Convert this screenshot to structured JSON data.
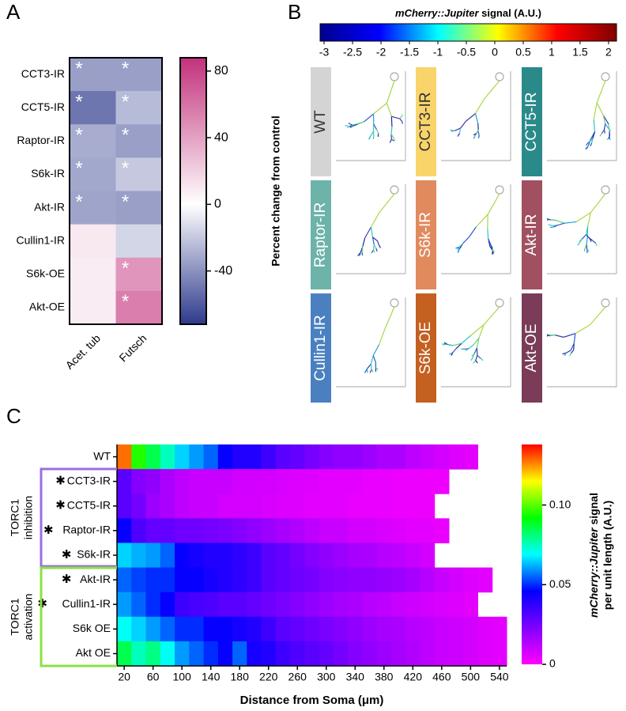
{
  "chart_data": [
    {
      "type": "heatmap",
      "panel_label": "A",
      "rows": [
        "CCT3-IR",
        "CCT5-IR",
        "Raptor-IR",
        "S6k-IR",
        "Akt-IR",
        "Cullin1-IR",
        "S6k-OE",
        "Akt-OE"
      ],
      "columns": [
        "Acet. tub",
        "Futsch"
      ],
      "values": [
        [
          -35,
          -35
        ],
        [
          -50,
          -25
        ],
        [
          -30,
          -35
        ],
        [
          -32,
          -20
        ],
        [
          -33,
          -35
        ],
        [
          10,
          -15
        ],
        [
          8,
          45
        ],
        [
          8,
          55
        ]
      ],
      "significant": [
        [
          true,
          true
        ],
        [
          true,
          true
        ],
        [
          true,
          true
        ],
        [
          true,
          true
        ],
        [
          true,
          true
        ],
        [
          false,
          false
        ],
        [
          false,
          true
        ],
        [
          false,
          true
        ]
      ],
      "marker": "*",
      "zlim": [
        -72,
        88
      ],
      "zticks": [
        80,
        40,
        0,
        -40
      ],
      "colorbar_label": "Percent change from control",
      "colors": [
        "#2e3a8c",
        "#ffffff",
        "#c2317b"
      ]
    },
    {
      "type": "heatmap",
      "panel_label": "C",
      "rows": [
        "WT",
        "CCT3-IR",
        "CCT5-IR",
        "Raptor-IR",
        "S6k-IR",
        "Akt-IR",
        "Cullin1-IR",
        "S6k OE",
        "Akt OE"
      ],
      "starred": [
        false,
        true,
        true,
        true,
        true,
        true,
        true,
        false,
        false
      ],
      "marker": "✱",
      "x": [
        20,
        40,
        60,
        80,
        100,
        120,
        140,
        160,
        180,
        200,
        220,
        240,
        260,
        280,
        300,
        320,
        340,
        360,
        380,
        400,
        420,
        440,
        460,
        480,
        500,
        520,
        540
      ],
      "xlim": [
        10,
        550
      ],
      "xticks": [
        20,
        60,
        100,
        140,
        180,
        220,
        260,
        300,
        340,
        380,
        420,
        460,
        500,
        540
      ],
      "xlabel": "Distance from Soma (μm)",
      "values": [
        [
          0.128,
          0.095,
          0.085,
          0.075,
          0.065,
          0.06,
          0.055,
          0.045,
          0.04,
          0.04,
          0.035,
          0.03,
          0.028,
          0.025,
          0.022,
          0.02,
          0.02,
          0.018,
          0.015,
          0.015,
          0.012,
          0.01,
          0.008,
          0.006,
          0.005,
          null,
          null
        ],
        [
          0.03,
          0.022,
          0.02,
          0.015,
          0.012,
          0.01,
          0.01,
          0.01,
          0.008,
          0.008,
          0.008,
          0.007,
          0.006,
          0.006,
          0.005,
          0.005,
          0.005,
          0.004,
          0.004,
          0.003,
          0.003,
          0.003,
          0.003,
          null,
          null,
          null,
          null
        ],
        [
          0.03,
          0.025,
          0.018,
          0.015,
          0.012,
          0.01,
          0.01,
          0.008,
          0.008,
          0.008,
          0.007,
          0.006,
          0.006,
          0.005,
          0.005,
          0.005,
          0.004,
          0.004,
          0.004,
          0.003,
          0.003,
          0.003,
          null,
          null,
          null,
          null,
          null
        ],
        [
          0.045,
          0.032,
          0.028,
          0.028,
          0.026,
          0.026,
          0.025,
          0.024,
          0.022,
          0.02,
          0.018,
          0.016,
          0.014,
          0.012,
          0.01,
          0.01,
          0.008,
          0.008,
          0.007,
          0.006,
          0.005,
          0.005,
          0.004,
          null,
          null,
          null,
          null
        ],
        [
          0.065,
          0.062,
          0.06,
          0.055,
          0.045,
          0.042,
          0.04,
          0.04,
          0.038,
          0.035,
          0.03,
          0.028,
          0.025,
          0.022,
          0.02,
          0.018,
          0.016,
          0.015,
          0.013,
          0.012,
          0.01,
          0.008,
          null,
          null,
          null,
          null,
          null
        ],
        [
          0.055,
          0.052,
          0.05,
          0.05,
          0.045,
          0.045,
          0.042,
          0.04,
          0.038,
          0.035,
          0.03,
          0.028,
          0.026,
          0.025,
          0.022,
          0.021,
          0.02,
          0.02,
          0.019,
          0.018,
          0.016,
          0.013,
          0.01,
          0.008,
          0.006,
          0.005,
          null
        ],
        [
          0.06,
          0.055,
          0.05,
          0.045,
          0.035,
          0.033,
          0.032,
          0.03,
          0.03,
          0.028,
          0.026,
          0.024,
          0.022,
          0.02,
          0.018,
          0.016,
          0.015,
          0.013,
          0.012,
          0.01,
          0.009,
          0.008,
          0.007,
          0.006,
          0.005,
          null,
          null
        ],
        [
          0.07,
          0.065,
          0.06,
          0.055,
          0.05,
          0.05,
          0.045,
          0.045,
          0.042,
          0.04,
          0.035,
          0.03,
          0.028,
          0.026,
          0.024,
          0.022,
          0.02,
          0.018,
          0.016,
          0.015,
          0.013,
          0.012,
          0.01,
          0.009,
          0.008,
          0.006,
          0.005
        ],
        [
          0.085,
          0.075,
          0.08,
          0.07,
          0.06,
          0.055,
          0.05,
          0.045,
          0.055,
          0.042,
          0.04,
          0.035,
          0.032,
          0.03,
          0.028,
          0.025,
          0.022,
          0.02,
          0.018,
          0.016,
          0.014,
          0.012,
          0.01,
          0.009,
          0.008,
          0.006,
          0.005
        ]
      ],
      "zlim": [
        0,
        0.138
      ],
      "zticks": [
        0,
        0.05,
        {
          "value": 0.1,
          "label": "0.10"
        }
      ],
      "colorbar_label": {
        "italic": "mCherry::Jupiter",
        "rest": " signal",
        "line2": "per unit length  (A.U.)"
      },
      "colors": [
        "#ff00ff",
        "#8000ff",
        "#0000ff",
        "#00ffff",
        "#00ff00",
        "#ffff00",
        "#ff0000"
      ],
      "groups": [
        {
          "lines": [
            "TORC1",
            "inhibition"
          ],
          "color": "#9b6fe0"
        },
        {
          "lines": [
            "TORC1",
            "activation"
          ],
          "color": "#8ee045"
        }
      ]
    }
  ],
  "panel_b": {
    "panel_label": "B",
    "colorbar": {
      "title_italic": "mCherry::Jupiter",
      "title_rest": " signal (A.U.)",
      "lim": [
        -3.07,
        2.14
      ],
      "ticks": [
        -3,
        -2.5,
        -2,
        -1.5,
        -1,
        -0.5,
        0,
        0.5,
        1,
        1.5,
        2
      ],
      "colors": [
        "#00008f",
        "#0000ff",
        "#00ffff",
        "#ffff00",
        "#ff0000",
        "#800000"
      ]
    },
    "tiles": [
      {
        "label": "WT",
        "color": "#d4d4d4",
        "text_color": "#333333"
      },
      {
        "label": "CCT3-IR",
        "color": "#f8d46a",
        "text_color": "#333333"
      },
      {
        "label": "CCT5-IR",
        "color": "#2a8a8a",
        "text_color": "#ffffff"
      },
      {
        "label": "Raptor-IR",
        "color": "#6db3aa",
        "text_color": "#ffffff"
      },
      {
        "label": "S6k-IR",
        "color": "#e08a5e",
        "text_color": "#ffffff"
      },
      {
        "label": "Akt-IR",
        "color": "#a05060",
        "text_color": "#ffffff"
      },
      {
        "label": "Cullin1-IR",
        "color": "#4a80c0",
        "text_color": "#ffffff"
      },
      {
        "label": "S6k-OE",
        "color": "#c46020",
        "text_color": "#ffffff"
      },
      {
        "label": "Akt-OE",
        "color": "#7a3c58",
        "text_color": "#ffffff"
      }
    ]
  }
}
